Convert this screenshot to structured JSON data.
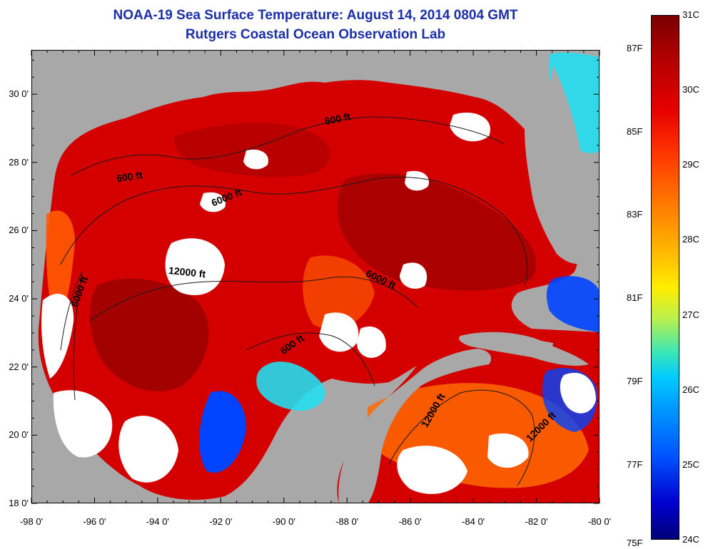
{
  "title": {
    "line1": "NOAA-19 Sea Surface Temperature:  August 14, 2014 0804 GMT",
    "line2": "Rutgers Coastal Ocean Observation Lab"
  },
  "map": {
    "lat_labels": [
      "30 0'",
      "28 0'",
      "26 0'",
      "24 0'",
      "22 0'",
      "20 0'",
      "18 0'"
    ],
    "lat_values": [
      30,
      28,
      26,
      24,
      22,
      20,
      18
    ],
    "lon_labels": [
      "-98 0'",
      "-96 0'",
      "-94 0'",
      "-92 0'",
      "-90 0'",
      "-88 0'",
      "-86 0'",
      "-84 0'",
      "-82 0'",
      "-80 0'"
    ],
    "lon_values": [
      -98,
      -96,
      -94,
      -92,
      -90,
      -88,
      -86,
      -84,
      -82,
      -80
    ],
    "lat_range": [
      18,
      31.3
    ],
    "lon_range": [
      -98,
      -80
    ],
    "contours": [
      {
        "label": "600 ft",
        "lon": -94.9,
        "lat": 27.5,
        "angle": -8
      },
      {
        "label": "600 ft",
        "lon": -88.3,
        "lat": 29.2,
        "angle": -12
      },
      {
        "label": "6000 ft",
        "lon": -91.8,
        "lat": 26.9,
        "angle": -22
      },
      {
        "label": "6000 ft",
        "lon": -96.4,
        "lat": 24.2,
        "angle": -70
      },
      {
        "label": "12000 ft",
        "lon": -93.1,
        "lat": 24.7,
        "angle": 6
      },
      {
        "label": "6000 ft",
        "lon": -87.0,
        "lat": 24.5,
        "angle": 25
      },
      {
        "label": "600 ft",
        "lon": -89.7,
        "lat": 22.6,
        "angle": -35
      },
      {
        "label": "12000 ft",
        "lon": -85.2,
        "lat": 20.7,
        "angle": -60
      },
      {
        "label": "12000 ft",
        "lon": -81.8,
        "lat": 20.2,
        "angle": -45
      }
    ],
    "colors": {
      "land": "#a8a8a8",
      "cloud": "#ffffff",
      "hot": "#d40000",
      "very_hot": "#9a0000",
      "warm": "#ff5a00",
      "cool": "#0044ff",
      "cyan": "#22ddee"
    }
  },
  "colorbar": {
    "celsius_labels": [
      "31C",
      "30C",
      "29C",
      "28C",
      "27C",
      "26C",
      "25C",
      "24C"
    ],
    "celsius_values": [
      31,
      30,
      29,
      28,
      27,
      26,
      25,
      24
    ],
    "fahrenheit_labels": [
      "87F",
      "85F",
      "83F",
      "81F",
      "79F",
      "77F",
      "75F"
    ],
    "fahrenheit_values": [
      87,
      85,
      83,
      81,
      79,
      77,
      75
    ]
  }
}
